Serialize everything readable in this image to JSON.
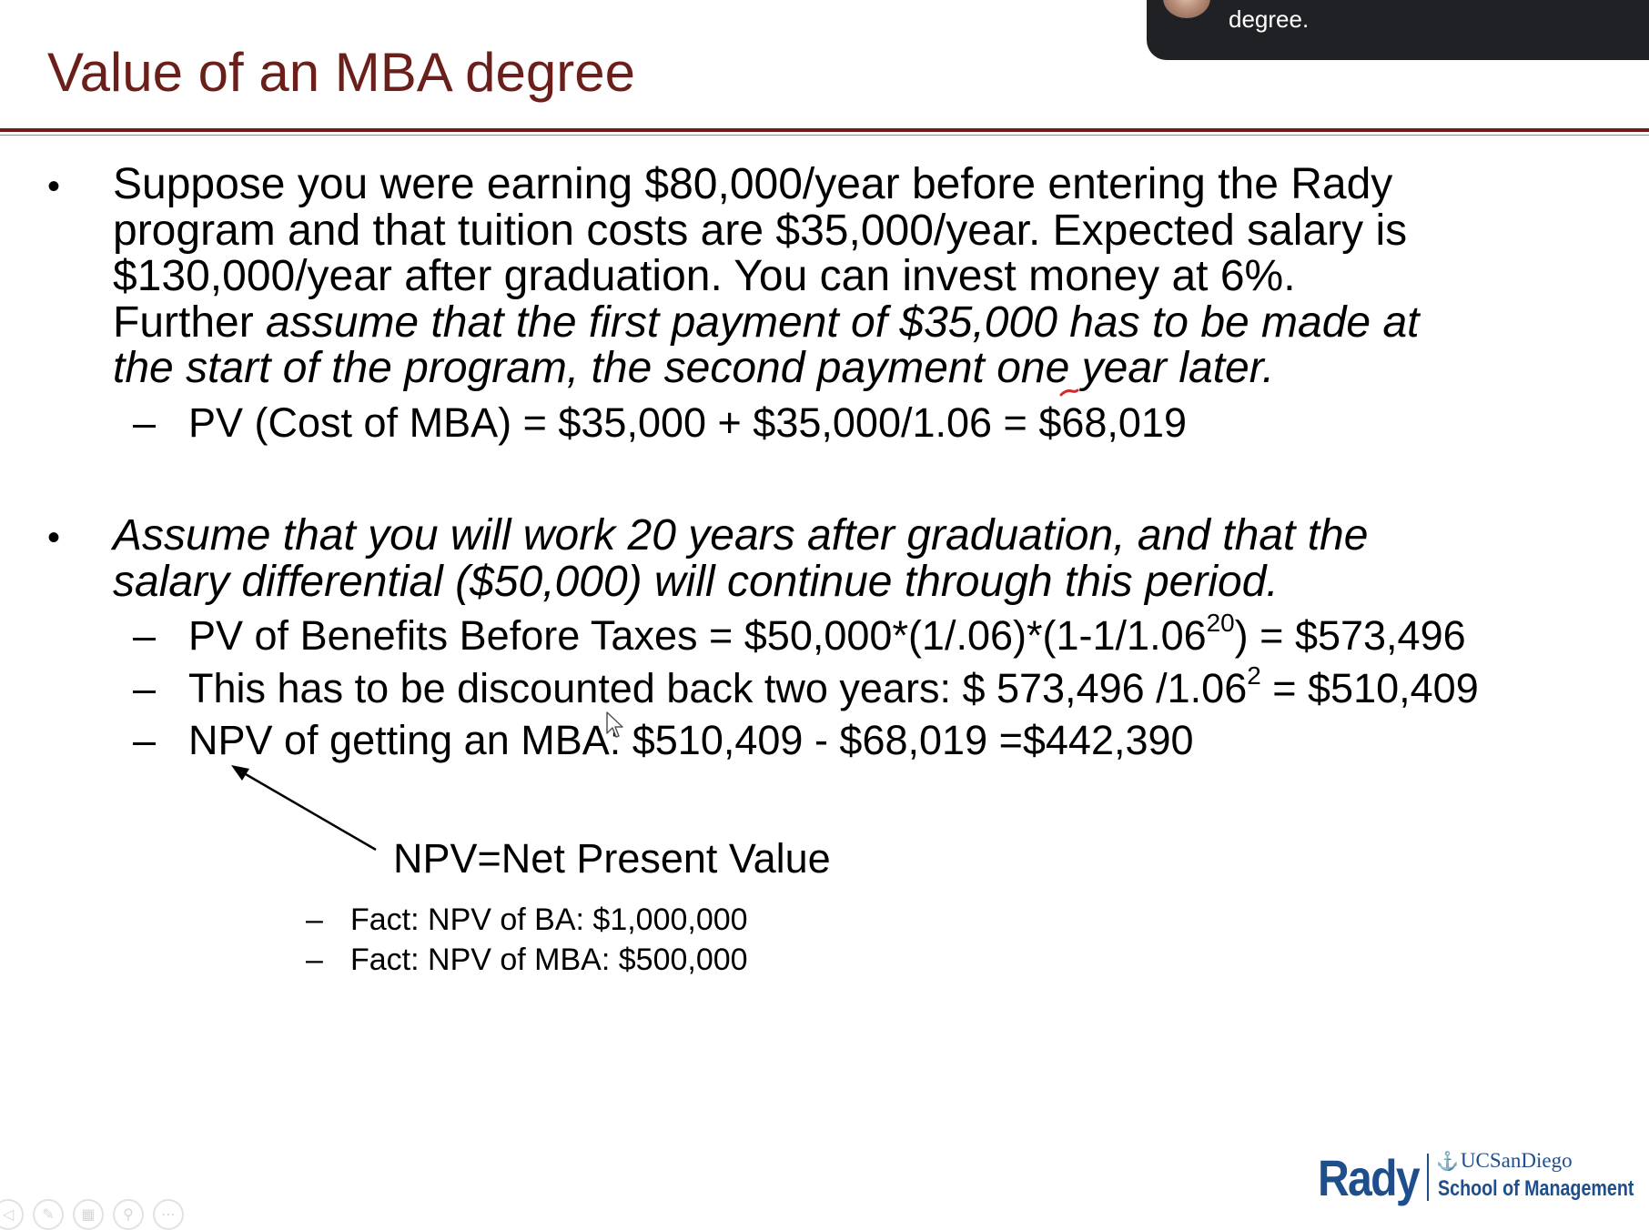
{
  "slide": {
    "title": "Value of an MBA degree",
    "bullet_symbol": "•",
    "dash_symbol": "–",
    "bullet1": {
      "line1": "Suppose you were earning $80,000/year before entering the Rady",
      "line2": "program and that tuition costs are $35,000/year. Expected salary is",
      "line3": "$130,000/year after graduation. You can invest money at 6%.",
      "line4_normal": "Further ",
      "line4_italic": "assume that the first payment of $35,000 has to be made at",
      "line5_italic": "the start of the program, the second payment one year later.",
      "sub1": "PV (Cost of MBA) = $35,000 + $35,000/1.06 = $68,019"
    },
    "bullet2": {
      "line1_italic": "Assume that you will work 20 years after graduation, and that the",
      "line2_italic": "salary differential ($50,000) will continue through this period.",
      "sub1_pre": "PV of Benefits Before Taxes = $50,000*(1/.06)*(1-1/1.06",
      "sub1_sup": "20",
      "sub1_post": ") = $573,496",
      "sub2_pre": "This has to be discounted back two years: $ 573,496 /1.06",
      "sub2_sup": "2",
      "sub2_post": " = $510,409",
      "sub3": "NPV of getting an MBA: $510,409 - $68,019 =$442,390"
    },
    "npv_definition": "NPV=Net Present Value",
    "facts": [
      "Fact: NPV of BA: $1,000,000",
      "Fact: NPV of MBA: $500,000"
    ]
  },
  "overlay": {
    "caption_text": "degree."
  },
  "logo": {
    "rady": "Rady",
    "ucsd": "UCSanDiego",
    "school": "School of Management"
  },
  "toolbar": {
    "buttons": [
      {
        "icon": "previous-icon",
        "glyph": "◁"
      },
      {
        "icon": "pen-icon",
        "glyph": "✎"
      },
      {
        "icon": "slides-grid-icon",
        "glyph": "▦"
      },
      {
        "icon": "zoom-icon",
        "glyph": "⚲"
      },
      {
        "icon": "more-options-icon",
        "glyph": "⋯"
      }
    ]
  },
  "colors": {
    "title": "#6b1f1a",
    "logo_blue": "#1f4e8c",
    "overlay_bg": "#202124",
    "ink_red": "#d62828"
  }
}
